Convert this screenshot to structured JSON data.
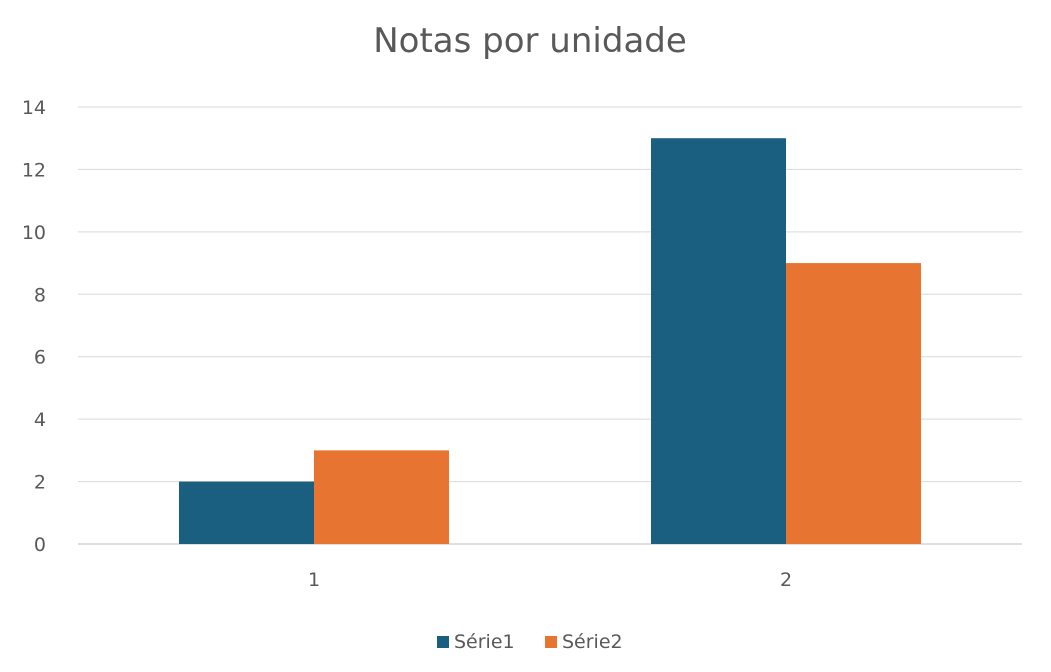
{
  "chart_data": {
    "type": "bar",
    "title": "Notas por unidade",
    "categories": [
      "1",
      "2"
    ],
    "series": [
      {
        "name": "Série1",
        "values": [
          2,
          13
        ],
        "color": "#1a5e80"
      },
      {
        "name": "Série2",
        "values": [
          3,
          9
        ],
        "color": "#e87431"
      }
    ],
    "ylim": [
      0,
      14
    ],
    "yticks": [
      "0",
      "2",
      "4",
      "6",
      "8",
      "10",
      "12",
      "14"
    ],
    "grid": true,
    "legend_position": "bottom"
  }
}
